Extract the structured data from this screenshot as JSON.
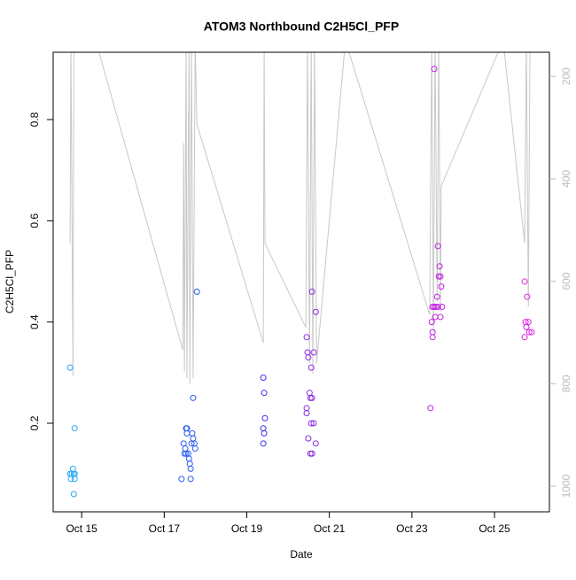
{
  "chart_data": {
    "type": "scatter",
    "title": "ATOM3 Northbound C2H5Cl_PFP",
    "xlabel": "Date",
    "ylabel": "C2H5Cl_PFP",
    "xlim": [
      14.31,
      26.33
    ],
    "xticks": [
      {
        "value": 15,
        "label": "Oct 15"
      },
      {
        "value": 17,
        "label": "Oct 17"
      },
      {
        "value": 19,
        "label": "Oct 19"
      },
      {
        "value": 21,
        "label": "Oct 21"
      },
      {
        "value": 23,
        "label": "Oct 23"
      },
      {
        "value": 25,
        "label": "Oct 25"
      }
    ],
    "ylim": [
      0.025,
      0.933
    ],
    "yticks": [
      0.2,
      0.4,
      0.6,
      0.8
    ],
    "y2lim": [
      1050,
      153
    ],
    "y2ticks": [
      200,
      400,
      600,
      800,
      1000
    ],
    "series": [
      {
        "type": "scatter",
        "x": [
          14.72,
          14.83,
          14.72,
          14.76,
          14.81,
          14.79,
          14.74,
          14.83,
          14.81,
          14.83,
          17.42,
          17.64,
          17.47,
          17.49,
          17.51,
          17.53,
          17.55,
          17.55,
          17.58,
          17.6,
          17.62,
          17.64,
          17.66,
          17.68,
          17.7,
          17.73,
          17.75,
          17.7,
          17.79,
          17.53,
          19.4,
          19.42,
          19.44,
          19.4,
          19.42,
          19.4,
          20.45,
          20.47,
          20.49,
          20.52,
          20.54,
          20.58,
          20.56,
          20.58,
          20.62,
          20.67,
          20.45,
          20.45,
          20.49,
          20.54,
          20.58,
          20.56,
          20.62,
          20.67,
          23.54,
          23.5,
          23.48,
          23.5,
          23.5,
          23.54,
          23.56,
          23.58,
          23.61,
          23.63,
          23.65,
          23.67,
          23.69,
          23.71,
          23.69,
          23.63,
          23.73,
          23.45,
          25.73,
          25.79,
          25.75,
          25.82,
          25.77,
          25.84,
          25.9,
          25.73
        ],
        "values": [
          0.31,
          0.19,
          0.1,
          0.1,
          0.1,
          0.11,
          0.09,
          0.09,
          0.06,
          0.1,
          0.09,
          0.09,
          0.16,
          0.14,
          0.15,
          0.19,
          0.19,
          0.18,
          0.14,
          0.13,
          0.12,
          0.11,
          0.16,
          0.18,
          0.17,
          0.16,
          0.15,
          0.25,
          0.46,
          0.14,
          0.29,
          0.26,
          0.21,
          0.19,
          0.18,
          0.16,
          0.37,
          0.34,
          0.33,
          0.26,
          0.25,
          0.25,
          0.31,
          0.46,
          0.34,
          0.42,
          0.23,
          0.22,
          0.17,
          0.14,
          0.14,
          0.2,
          0.2,
          0.16,
          0.9,
          0.43,
          0.4,
          0.38,
          0.37,
          0.43,
          0.41,
          0.43,
          0.45,
          0.55,
          0.49,
          0.51,
          0.49,
          0.47,
          0.41,
          0.43,
          0.43,
          0.23,
          0.48,
          0.45,
          0.4,
          0.4,
          0.39,
          0.38,
          0.38,
          0.37
        ],
        "colors": [
          "#2aa8f2",
          "#2aa8f2",
          "#2aa8f2",
          "#2aa8f2",
          "#2aa8f2",
          "#2aa8f2",
          "#2aa8f2",
          "#2aa8f2",
          "#2aa8f2",
          "#2aa8f2",
          "#2a5cf0",
          "#2a5cf0",
          "#2a5cf0",
          "#2a5cf0",
          "#2a5cf0",
          "#2a5cf0",
          "#2a5cf0",
          "#2a5cf0",
          "#2a5cf0",
          "#2a5cf0",
          "#2a5cf0",
          "#2a5cf0",
          "#2a5cf0",
          "#2a5cf0",
          "#2a5cf0",
          "#2a5cf0",
          "#2a5cf0",
          "#2a5cf0",
          "#2a5cf0",
          "#2a5cf0",
          "#3a2ef0",
          "#3a2ef0",
          "#3a2ef0",
          "#3a2ef0",
          "#3a2ef0",
          "#3a2ef0",
          "#8a2be2",
          "#8a2be2",
          "#8a2be2",
          "#8a2be2",
          "#8a2be2",
          "#8a2be2",
          "#8a2be2",
          "#8a2be2",
          "#8a2be2",
          "#8a2be2",
          "#8a2be2",
          "#8a2be2",
          "#8a2be2",
          "#8a2be2",
          "#8a2be2",
          "#8a2be2",
          "#8a2be2",
          "#8a2be2",
          "#c020e0",
          "#c020e0",
          "#c020e0",
          "#c020e0",
          "#c020e0",
          "#c020e0",
          "#c020e0",
          "#c020e0",
          "#c020e0",
          "#c020e0",
          "#c020e0",
          "#c020e0",
          "#c020e0",
          "#c020e0",
          "#c020e0",
          "#c020e0",
          "#c020e0",
          "#c020e0",
          "#e020e0",
          "#e020e0",
          "#e020e0",
          "#e020e0",
          "#e020e0",
          "#e020e0",
          "#e020e0",
          "#e020e0"
        ]
      },
      {
        "type": "line",
        "axis": "y2",
        "color": "#c8c8c8",
        "x": [
          14.72,
          14.74,
          14.79,
          14.81,
          14.83,
          15.34,
          17.45,
          17.47,
          17.49,
          17.53,
          17.55,
          17.6,
          17.62,
          17.66,
          17.7,
          17.75,
          17.79,
          19.4,
          19.42,
          19.44,
          20.43,
          20.47,
          20.52,
          20.56,
          20.6,
          20.64,
          20.69,
          21.39,
          23.43,
          23.48,
          23.52,
          23.56,
          23.61,
          23.65,
          23.69,
          23.71,
          25.21,
          25.73,
          25.77,
          25.82,
          25.86
        ],
        "values": [
          526,
          130,
          786,
          130,
          130,
          130,
          734,
          330,
          776,
          130,
          790,
          130,
          800,
          130,
          790,
          130,
          293,
          720,
          130,
          526,
          690,
          130,
          760,
          130,
          780,
          130,
          760,
          130,
          665,
          130,
          700,
          130,
          640,
          130,
          660,
          414,
          130,
          526,
          130,
          650,
          130
        ]
      }
    ]
  }
}
